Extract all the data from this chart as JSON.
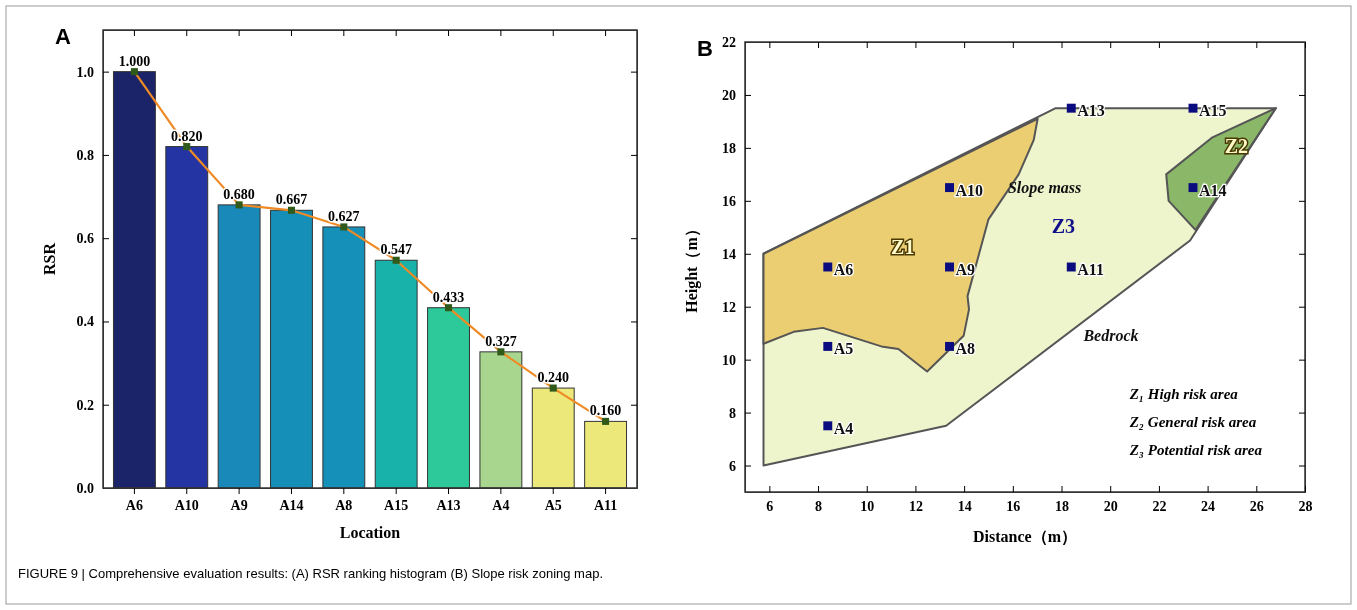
{
  "chart_data": [
    {
      "type": "bar",
      "title": "A",
      "xlabel": "Location",
      "ylabel": "RSR",
      "categories": [
        "A6",
        "A10",
        "A9",
        "A14",
        "A8",
        "A15",
        "A13",
        "A4",
        "A5",
        "A11"
      ],
      "series": [
        {
          "colors": [
            "#1b2468",
            "#2434a2",
            "#1889b8",
            "#168fb8",
            "#1590b8",
            "#18b2aa",
            "#2ec99a",
            "#a8d68e",
            "#ede87a",
            "#ede87a"
          ],
          "values": [
            1.0,
            0.82,
            0.68,
            0.667,
            0.627,
            0.547,
            0.433,
            0.327,
            0.24,
            0.16
          ],
          "value_labels": [
            "1.000",
            "0.820",
            "0.680",
            "0.667",
            "0.627",
            "0.547",
            "0.433",
            "0.327",
            "0.240",
            "0.160"
          ]
        },
        {
          "type": "line",
          "color": "#ef8a24",
          "marker": "square",
          "values": [
            1.0,
            0.82,
            0.68,
            0.667,
            0.627,
            0.547,
            0.433,
            0.327,
            0.24,
            0.16
          ]
        }
      ],
      "ylim": [
        0,
        1.1
      ],
      "yticks": [
        {
          "value": 0,
          "label": "0.0"
        },
        {
          "value": 0.2,
          "label": "0.2"
        },
        {
          "value": 0.4,
          "label": "0.4"
        },
        {
          "value": 0.6,
          "label": "0.6"
        },
        {
          "value": 0.8,
          "label": "0.8"
        },
        {
          "value": 1.0,
          "label": "1.0"
        }
      ],
      "annotations": [
        "FIGURE 9 | Comprehensive evaluation results: (A) RSR ranking histogram (B) Slope risk zoning map."
      ]
    },
    {
      "type": "scatter",
      "title": "B",
      "xlabel": "Distance（m）",
      "ylabel": "Height（m）",
      "series": [
        {
          "type": "area",
          "color": "#eef4cc",
          "x": [
            5.76,
            13.26,
            23.28,
            26.8,
            17.76,
            5.76
          ],
          "values": [
            6,
            7.5,
            14.5,
            19.5,
            19.5,
            14
          ]
        },
        {
          "type": "area",
          "color": "#ecce72",
          "x": [
            5.76,
            17.02,
            16.86,
            16.24,
            15.0,
            14.14,
            14.2,
            13.98,
            12.48,
            11.3,
            10.6,
            8.2,
            7.0,
            5.76
          ],
          "values": [
            14,
            19.1,
            18.3,
            17.0,
            15.3,
            12.4,
            11.9,
            10.9,
            9.55,
            10.4,
            10.5,
            11.2,
            11.05,
            10.6
          ]
        },
        {
          "type": "area",
          "color": "#8ab868",
          "x": [
            26.8,
            24.2,
            22.3,
            22.4,
            23.5
          ],
          "values": [
            19.5,
            18.4,
            17.0,
            16.0,
            14.9
          ]
        },
        {
          "color": "#0b0b80",
          "marker": "square",
          "x": [
            18.4,
            23.4,
            13.4,
            23.4,
            8.4,
            13.4,
            18.4,
            8.4,
            13.4,
            8.4
          ],
          "values": [
            19.5,
            19.5,
            16.5,
            16.5,
            13.5,
            13.5,
            13.5,
            10.5,
            10.5,
            7.5
          ]
        }
      ],
      "xlim": [
        5,
        28
      ],
      "xticks": [
        6,
        8,
        10,
        12,
        14,
        16,
        18,
        20,
        22,
        24,
        26,
        28
      ],
      "ylim": [
        5,
        22
      ],
      "yticks": [
        6,
        8,
        10,
        12,
        14,
        16,
        18,
        20,
        22
      ],
      "annotations": [
        {
          "text": "A13",
          "x": 18.4,
          "y": 19.5
        },
        {
          "text": "A15",
          "x": 23.4,
          "y": 19.5
        },
        {
          "text": "A10",
          "x": 13.4,
          "y": 16.5
        },
        {
          "text": "A14",
          "x": 23.4,
          "y": 16.5
        },
        {
          "text": "A6",
          "x": 8.4,
          "y": 13.5
        },
        {
          "text": "A9",
          "x": 13.4,
          "y": 13.5
        },
        {
          "text": "A11",
          "x": 18.4,
          "y": 13.5
        },
        {
          "text": "A5",
          "x": 8.4,
          "y": 10.5
        },
        {
          "text": "A8",
          "x": 13.4,
          "y": 10.5
        },
        {
          "text": "A4",
          "x": 8.4,
          "y": 7.5
        },
        "Z1",
        "Z2",
        "Z3",
        "Slope mass",
        "Bedrock",
        "Z₁ High risk area",
        "Z₂ General risk area",
        "Z₃ Potential risk area"
      ]
    }
  ]
}
